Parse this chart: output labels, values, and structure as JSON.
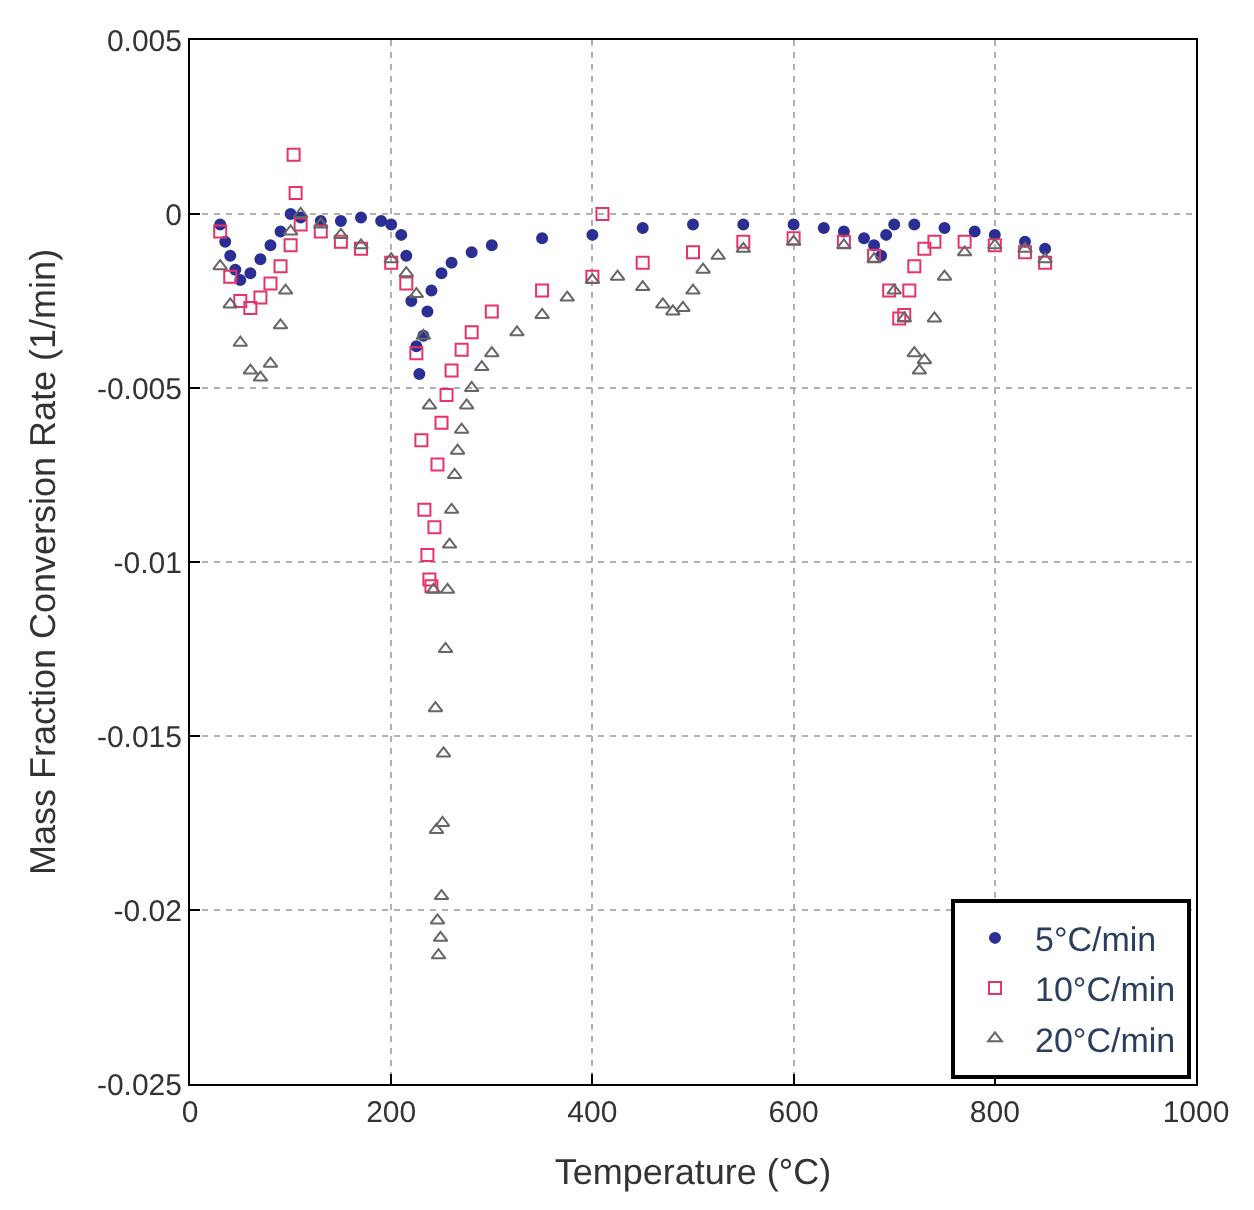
{
  "chart_data": {
    "type": "scatter",
    "xlabel": "Temperature (°C)",
    "ylabel": "Mass Fraction Conversion Rate (1/min)",
    "xlim": [
      0,
      1000
    ],
    "ylim": [
      -0.025,
      0.005
    ],
    "xticks": [
      0,
      200,
      400,
      600,
      800,
      1000
    ],
    "yticks": [
      -0.025,
      -0.02,
      -0.015,
      -0.01,
      -0.005,
      0,
      0.005
    ],
    "grid": true,
    "legend": "bottom right",
    "series": [
      {
        "name": "5°C/min",
        "color": "#2b2f93",
        "marker": "circle",
        "x": [
          30,
          35,
          40,
          45,
          50,
          60,
          70,
          80,
          90,
          100,
          110,
          130,
          150,
          170,
          190,
          200,
          210,
          215,
          220,
          225,
          228,
          232,
          236,
          240,
          250,
          260,
          280,
          300,
          350,
          400,
          450,
          500,
          550,
          600,
          630,
          650,
          670,
          680,
          687,
          692,
          700,
          720,
          750,
          780,
          800,
          830,
          850
        ],
        "values": [
          -0.0003,
          -0.0008,
          -0.0012,
          -0.0016,
          -0.0019,
          -0.0017,
          -0.0013,
          -0.0009,
          -0.0005,
          0,
          -0.0001,
          -0.0002,
          -0.0002,
          -0.0001,
          -0.0002,
          -0.0003,
          -0.0006,
          -0.0012,
          -0.0025,
          -0.0038,
          -0.0046,
          -0.0035,
          -0.0028,
          -0.0022,
          -0.0017,
          -0.0014,
          -0.0011,
          -0.0009,
          -0.0007,
          -0.0006,
          -0.0004,
          -0.0003,
          -0.0003,
          -0.0003,
          -0.0004,
          -0.0005,
          -0.0007,
          -0.0009,
          -0.0012,
          -0.0006,
          -0.0003,
          -0.0003,
          -0.0004,
          -0.0005,
          -0.0006,
          -0.0008,
          -0.001
        ]
      },
      {
        "name": "10°C/min",
        "color": "#e8336a",
        "marker": "square",
        "x": [
          30,
          40,
          50,
          60,
          70,
          80,
          90,
          100,
          103,
          105,
          110,
          130,
          150,
          170,
          200,
          215,
          225,
          230,
          233,
          236,
          238,
          240,
          243,
          246,
          250,
          255,
          260,
          270,
          280,
          300,
          350,
          400,
          410,
          450,
          500,
          550,
          600,
          650,
          680,
          695,
          705,
          710,
          715,
          720,
          730,
          740,
          770,
          800,
          830,
          850
        ],
        "values": [
          -0.0005,
          -0.0018,
          -0.0025,
          -0.0027,
          -0.0024,
          -0.002,
          -0.0015,
          -0.0009,
          0.0017,
          0.0006,
          -0.0003,
          -0.0005,
          -0.0008,
          -0.001,
          -0.0014,
          -0.002,
          -0.004,
          -0.0065,
          -0.0085,
          -0.0098,
          -0.0105,
          -0.0107,
          -0.009,
          -0.0072,
          -0.006,
          -0.0052,
          -0.0045,
          -0.0039,
          -0.0034,
          -0.0028,
          -0.0022,
          -0.0018,
          0,
          -0.0014,
          -0.0011,
          -0.0008,
          -0.0007,
          -0.0008,
          -0.0012,
          -0.0022,
          -0.003,
          -0.0029,
          -0.0022,
          -0.0015,
          -0.001,
          -0.0008,
          -0.0008,
          -0.0009,
          -0.0011,
          -0.0014
        ]
      },
      {
        "name": "20°C/min",
        "color": "#666666",
        "marker": "triangle",
        "x": [
          30,
          40,
          50,
          60,
          70,
          80,
          90,
          95,
          100,
          110,
          130,
          150,
          170,
          200,
          215,
          225,
          232,
          238,
          242,
          244,
          245,
          246,
          247,
          249,
          250,
          251,
          252,
          254,
          256,
          258,
          260,
          263,
          266,
          270,
          275,
          280,
          290,
          300,
          325,
          350,
          375,
          400,
          425,
          450,
          470,
          480,
          490,
          500,
          510,
          525,
          550,
          600,
          650,
          680,
          700,
          710,
          720,
          725,
          730,
          740,
          750,
          770,
          800,
          830,
          850
        ],
        "values": [
          -0.0015,
          -0.0026,
          -0.0037,
          -0.0045,
          -0.0047,
          -0.0043,
          -0.0032,
          -0.0022,
          -0.0005,
          0,
          -0.0003,
          -0.0006,
          -0.0009,
          -0.0013,
          -0.0017,
          -0.0023,
          -0.0035,
          -0.0055,
          -0.0108,
          -0.0142,
          -0.0177,
          -0.0203,
          -0.0213,
          -0.0208,
          -0.0196,
          -0.0175,
          -0.0155,
          -0.0125,
          -0.0108,
          -0.0095,
          -0.0085,
          -0.0075,
          -0.0068,
          -0.0062,
          -0.0055,
          -0.005,
          -0.0044,
          -0.004,
          -0.0034,
          -0.0029,
          -0.0024,
          -0.0019,
          -0.0018,
          -0.0021,
          -0.0026,
          -0.0028,
          -0.0027,
          -0.0022,
          -0.0016,
          -0.0012,
          -0.001,
          -0.0008,
          -0.0009,
          -0.0013,
          -0.0022,
          -0.003,
          -0.004,
          -0.0045,
          -0.0042,
          -0.003,
          -0.0018,
          -0.0011,
          -0.0009,
          -0.001,
          -0.0013
        ]
      }
    ]
  }
}
